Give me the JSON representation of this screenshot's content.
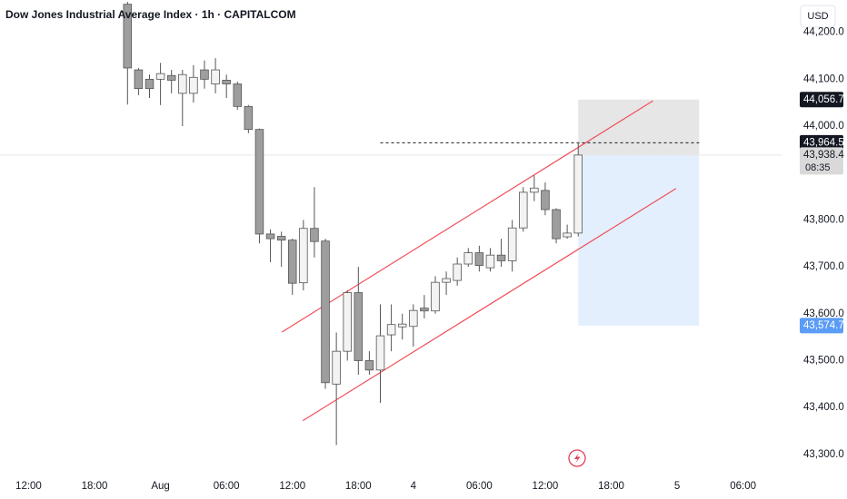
{
  "chart_data": {
    "type": "candlestick",
    "title": "Dow Jones Industrial Average Index · 1h · CAPITALCOM",
    "currency": "USD",
    "x": [
      0,
      1,
      2,
      3,
      4,
      5,
      6,
      7,
      8,
      9,
      10,
      11,
      12,
      13,
      14,
      15,
      16,
      17,
      18,
      19,
      20,
      21,
      22,
      23,
      24,
      25,
      26,
      27,
      28,
      29,
      30,
      31,
      32,
      33,
      34,
      35,
      36,
      37,
      38,
      39,
      40,
      41
    ],
    "open": [
      44260,
      44120,
      44100,
      44100,
      44108,
      44070,
      44070,
      44120,
      44090,
      44098,
      44090,
      44042,
      43993,
      43770,
      43765,
      43757,
      43666,
      43782,
      43755,
      43450,
      43520,
      43645,
      43500,
      43480,
      43555,
      43572,
      43573,
      43612,
      43606,
      43667,
      43671,
      43706,
      43730,
      43698,
      43725,
      43713,
      43783,
      43859,
      43863,
      43822,
      43764,
      43772
    ],
    "high": [
      44265,
      44124,
      44110,
      44135,
      44120,
      44120,
      44130,
      44140,
      44145,
      44110,
      44095,
      44045,
      43995,
      43780,
      43775,
      43760,
      43800,
      43870,
      43760,
      43560,
      43650,
      43700,
      43520,
      43620,
      43620,
      43600,
      43620,
      43640,
      43680,
      43690,
      43720,
      43740,
      43745,
      43740,
      43760,
      43800,
      43870,
      43895,
      43880,
      43825,
      43790,
      43965
    ],
    "low": [
      44046,
      44066,
      44060,
      44045,
      44070,
      44000,
      44050,
      44080,
      44070,
      44060,
      44035,
      43985,
      43750,
      43710,
      43700,
      43640,
      43650,
      43720,
      43440,
      43320,
      43500,
      43470,
      43470,
      43410,
      43520,
      43545,
      43530,
      43590,
      43600,
      43640,
      43660,
      43700,
      43690,
      43690,
      43700,
      43690,
      43775,
      43840,
      43810,
      43750,
      43760,
      43765
    ],
    "close": [
      44124,
      44080,
      44080,
      44112,
      44098,
      44110,
      44104,
      44100,
      44120,
      44090,
      44042,
      43993,
      43770,
      43760,
      43757,
      43665,
      43782,
      43754,
      43453,
      43520,
      43645,
      43500,
      43480,
      43553,
      43577,
      43578,
      43607,
      43606,
      43667,
      43675,
      43706,
      43730,
      43703,
      43725,
      43713,
      43783,
      43859,
      43868,
      43822,
      43760,
      43772,
      43938.4
    ],
    "up_color": "#f3f3f3",
    "down_color": "#9e9e9e",
    "border_color": "#555555",
    "xlim": [
      -11.6,
      59.5
    ],
    "ylim": [
      43263,
      44269
    ],
    "xticks": [
      {
        "value": -9,
        "label": "12:00"
      },
      {
        "value": -3,
        "label": "18:00"
      },
      {
        "value": 3,
        "label": "Aug"
      },
      {
        "value": 9,
        "label": "06:00"
      },
      {
        "value": 15,
        "label": "12:00"
      },
      {
        "value": 21,
        "label": "18:00"
      },
      {
        "value": 26,
        "label": "4"
      },
      {
        "value": 32,
        "label": "06:00"
      },
      {
        "value": 38,
        "label": "12:00"
      },
      {
        "value": 44,
        "label": "18:00"
      },
      {
        "value": 50,
        "label": "5"
      },
      {
        "value": 56,
        "label": "06:00"
      }
    ],
    "yticks": [
      {
        "value": 43300,
        "label": "43,300.0"
      },
      {
        "value": 43400,
        "label": "43,400.0"
      },
      {
        "value": 43500,
        "label": "43,500.0"
      },
      {
        "value": 43600,
        "label": "43,600.0"
      },
      {
        "value": 43700,
        "label": "43,700.0"
      },
      {
        "value": 43800,
        "label": "43,800.0"
      },
      {
        "value": 44000,
        "label": "44,000.0"
      },
      {
        "value": 44100,
        "label": "44,100.0"
      },
      {
        "value": 44200,
        "label": "44,200.0"
      }
    ],
    "channel": [
      {
        "color": "#f0505a",
        "x": [
          14.05,
          47.8
        ],
        "y": [
          43561,
          44054
        ]
      },
      {
        "color": "#f0505a",
        "x": [
          15.95,
          49.9
        ],
        "y": [
          43372,
          43867
        ]
      }
    ],
    "position": {
      "x": [
        41,
        52
      ],
      "target": 44056.7,
      "entry": 43938.4,
      "stop": 43574.7,
      "target_color": "#e6e6e6",
      "stop_color": "#e3effd"
    },
    "dashed_line": {
      "x": [
        23,
        52
      ],
      "y": 43964.5
    },
    "price_labels": [
      {
        "value": 44056.7,
        "label": "44,056.7",
        "color": "#131722"
      },
      {
        "value": 43964.5,
        "label": "43,964.5",
        "color": "#131722"
      },
      {
        "value": 43938.4,
        "label": "43,938.4",
        "color": "#d9d9d9",
        "countdown": "08:35"
      },
      {
        "value": 43574.7,
        "label": "43,574.7",
        "color": "#5b9cf6"
      }
    ]
  }
}
